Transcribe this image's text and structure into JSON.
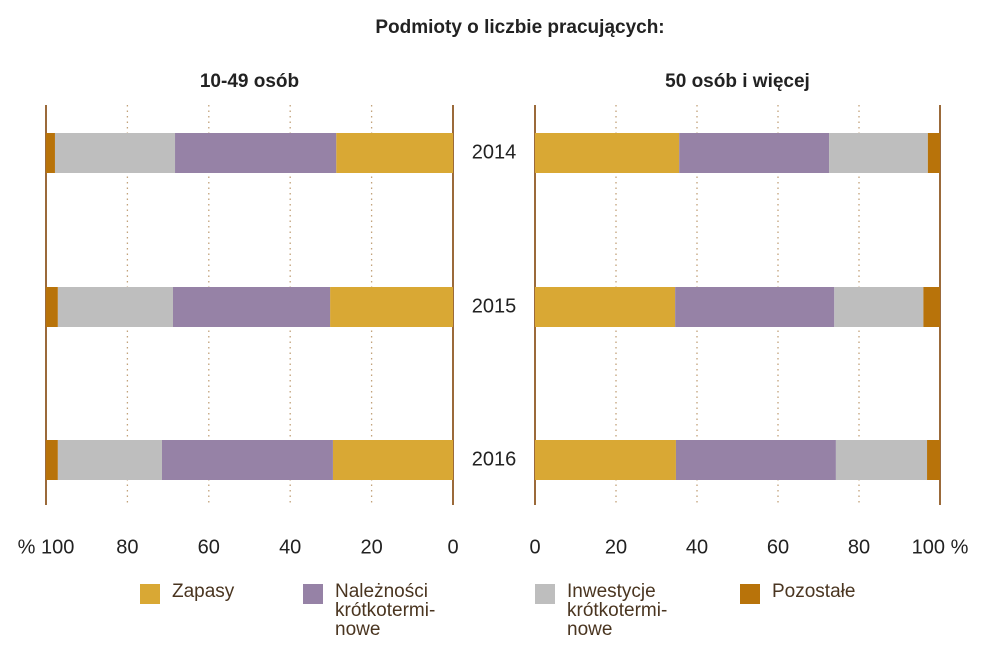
{
  "title": "Podmioty o liczbie pracujących:",
  "chart_data": [
    {
      "type": "bar",
      "orientation": "horizontal",
      "stacked": true,
      "reversed": true,
      "title": "10-49 osób",
      "categories": [
        "2014",
        "2015",
        "2016"
      ],
      "series": [
        {
          "name": "Zapasy",
          "color": "#d9a834",
          "values": [
            28.7,
            30.2,
            29.5
          ]
        },
        {
          "name": "Należności\nkrótkotermi-\nnowe",
          "color": "#9682a6",
          "values": [
            39.6,
            38.6,
            42.0
          ]
        },
        {
          "name": "Inwestycje\nkrótkotermi-\nnowe",
          "color": "#bebebe",
          "values": [
            29.5,
            28.3,
            25.6
          ]
        },
        {
          "name": "Pozostałe",
          "color": "#b8730a",
          "values": [
            2.2,
            2.9,
            2.9
          ]
        }
      ],
      "xlim": [
        0,
        100
      ],
      "xticks": [
        0,
        20,
        40,
        60,
        80,
        {
          "value": 100,
          "label": "% 100"
        }
      ],
      "grid": true
    },
    {
      "type": "bar",
      "orientation": "horizontal",
      "stacked": true,
      "reversed": false,
      "title": "50 osób i więcej",
      "categories": [
        "2014",
        "2015",
        "2016"
      ],
      "series": [
        {
          "name": "Zapasy",
          "color": "#d9a834",
          "values": [
            35.6,
            34.6,
            34.8
          ]
        },
        {
          "name": "Należności\nkrótkotermi-\nnowe",
          "color": "#9682a6",
          "values": [
            37.0,
            39.3,
            39.5
          ]
        },
        {
          "name": "Inwestycje\nkrótkotermi-\nnowe",
          "color": "#bebebe",
          "values": [
            24.4,
            22.0,
            22.5
          ]
        },
        {
          "name": "Pozostałe",
          "color": "#b8730a",
          "values": [
            3.0,
            4.1,
            3.2
          ]
        }
      ],
      "xlim": [
        0,
        100
      ],
      "xticks": [
        0,
        20,
        40,
        60,
        80,
        {
          "value": 100,
          "label": "100 %"
        }
      ],
      "grid": true
    }
  ]
}
